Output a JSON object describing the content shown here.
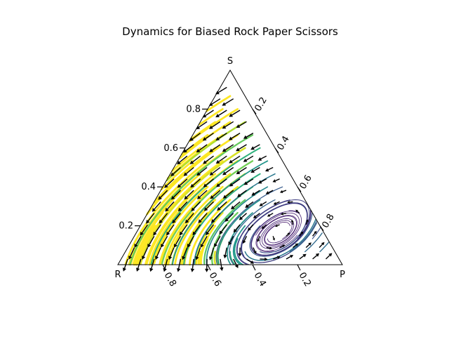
{
  "chart_data": {
    "type": "ternary-streamplot",
    "title": "Dynamics for Biased Rock Paper Scissors",
    "corners": {
      "bottom_left": "R",
      "bottom_right": "P",
      "top": "S"
    },
    "axes": {
      "left": {
        "variable": "S",
        "ticks": [
          0.2,
          0.4,
          0.6,
          0.8
        ],
        "tick_labels": [
          "0.2",
          "0.4",
          "0.6",
          "0.8"
        ]
      },
      "right": {
        "variable": "P",
        "ticks": [
          0.2,
          0.4,
          0.6,
          0.8
        ],
        "tick_labels": [
          "0.2",
          "0.4",
          "0.6",
          "0.8"
        ]
      },
      "bottom": {
        "variable": "R",
        "ticks": [
          0.2,
          0.4,
          0.6,
          0.8
        ],
        "tick_labels": [
          "0.2",
          "0.4",
          "0.6",
          "0.8"
        ]
      }
    },
    "interior_fixed_point": {
      "R": 0.18,
      "P": 0.62,
      "S": 0.2
    },
    "colormap": "viridis",
    "color_meaning": "speed",
    "quiver_color": "#000000",
    "grid": false,
    "legend": "none"
  }
}
